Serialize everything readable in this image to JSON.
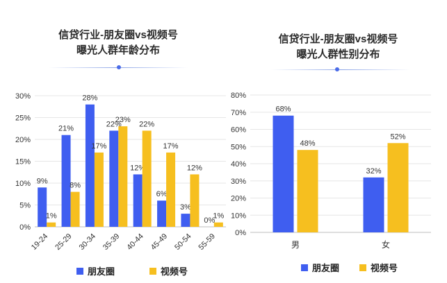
{
  "charts": {
    "left": {
      "title_line1": "信贷行业-朋友圈vs视频号",
      "title_line2": "曝光人群年龄分布"
    },
    "right": {
      "title_line1": "信贷行业-朋友圈vs视频号",
      "title_line2": "曝光人群性别分布"
    }
  },
  "colors": {
    "series_a": "#3f5ef0",
    "series_b": "#f6bf1f",
    "grid": "#e6e6e6",
    "text": "#333333"
  },
  "chart_data": [
    {
      "type": "bar",
      "title": "信贷行业-朋友圈vs视频号 曝光人群年龄分布",
      "categories": [
        "19-24",
        "25-29",
        "30-34",
        "35-39",
        "40-44",
        "45-49",
        "50-54",
        "55-59"
      ],
      "series": [
        {
          "name": "朋友圈",
          "values": [
            9,
            21,
            28,
            22,
            12,
            6,
            3,
            0
          ],
          "labels": [
            "9%",
            "21%",
            "28%",
            "22%",
            "12%",
            "6%",
            "3%",
            "0%"
          ]
        },
        {
          "name": "视频号",
          "values": [
            1,
            8,
            17,
            23,
            22,
            17,
            12,
            1
          ],
          "labels": [
            "1%",
            "8%",
            "17%",
            "23%",
            "22%",
            "17%",
            "12%",
            "1%"
          ]
        }
      ],
      "yticks": [
        "0%",
        "5%",
        "10%",
        "15%",
        "20%",
        "25%",
        "30%"
      ],
      "ylim": [
        0,
        30
      ],
      "legend": "bottom"
    },
    {
      "type": "bar",
      "title": "信贷行业-朋友圈vs视频号 曝光人群性别分布",
      "categories": [
        "男",
        "女"
      ],
      "series": [
        {
          "name": "朋友圈",
          "values": [
            68,
            32
          ],
          "labels": [
            "68%",
            "32%"
          ]
        },
        {
          "name": "视频号",
          "values": [
            48,
            52
          ],
          "labels": [
            "48%",
            "52%"
          ]
        }
      ],
      "yticks": [
        "0%",
        "10%",
        "20%",
        "30%",
        "40%",
        "50%",
        "60%",
        "70%",
        "80%"
      ],
      "ylim": [
        0,
        80
      ],
      "legend": "bottom"
    }
  ]
}
